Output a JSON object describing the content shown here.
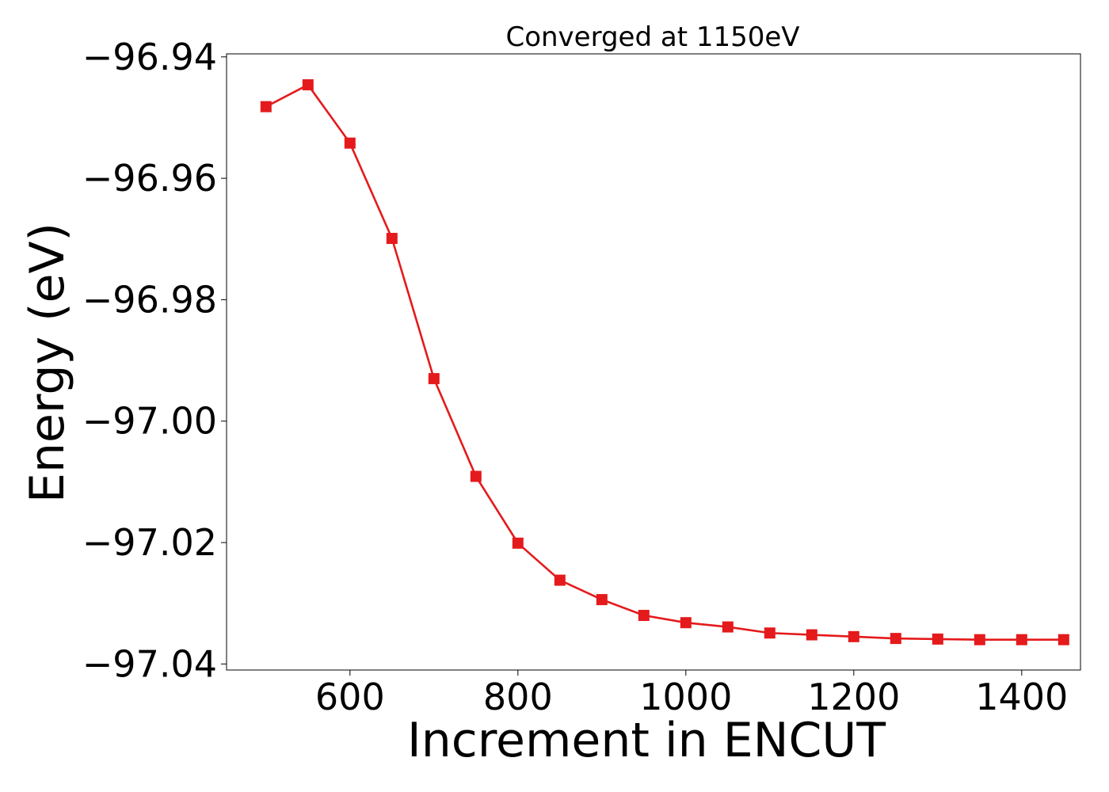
{
  "chart_data": {
    "type": "line",
    "title": "Converged at 1150eV",
    "xlabel": "Increment in ENCUT",
    "ylabel": "Energy (eV)",
    "xlim": [
      453,
      1470
    ],
    "ylim": [
      -97.041,
      -96.9395
    ],
    "xticks": [
      600,
      800,
      1000,
      1200,
      1400
    ],
    "xtick_labels": [
      "600",
      "800",
      "1000",
      "1200",
      "1400"
    ],
    "yticks": [
      -96.94,
      -96.96,
      -96.98,
      -97.0,
      -97.02,
      -97.04
    ],
    "ytick_labels": [
      "−96.94",
      "−96.96",
      "−96.98",
      "−97.00",
      "−97.02",
      "−97.04"
    ],
    "grid": false,
    "legend": "none",
    "color": "#e41a1c",
    "marker": "square-icon",
    "series": [
      {
        "x": [
          500,
          550,
          600,
          650,
          700,
          750,
          800,
          850,
          900,
          950,
          1000,
          1050,
          1100,
          1150,
          1200,
          1250,
          1300,
          1350,
          1400,
          1450
        ],
        "y": [
          -96.9482,
          -96.9446,
          -96.9542,
          -96.9699,
          -96.993,
          -97.0091,
          -97.0201,
          -97.0262,
          -97.0294,
          -97.032,
          -97.0332,
          -97.0339,
          -97.0349,
          -97.0352,
          -97.0355,
          -97.0358,
          -97.0359,
          -97.036,
          -97.036,
          -97.036
        ]
      }
    ]
  }
}
